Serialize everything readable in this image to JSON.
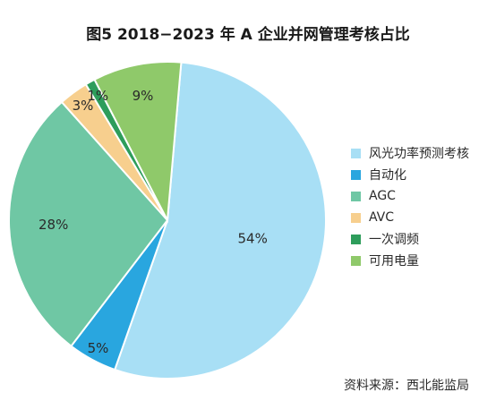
{
  "chart_data": {
    "type": "pie",
    "title": "图5 2018−2023 年 A 企业并网管理考核占比",
    "slices": [
      {
        "label": "风光功率预测考核",
        "value": 54,
        "text": "54%",
        "color": "#a8dff5"
      },
      {
        "label": "自动化",
        "value": 5,
        "text": "5%",
        "color": "#29a6df"
      },
      {
        "label": "AGC",
        "value": 28,
        "text": "28%",
        "color": "#6fc7a4"
      },
      {
        "label": "AVC",
        "value": 3,
        "text": "3%",
        "color": "#f7cf8e"
      },
      {
        "label": "一次调频",
        "value": 1,
        "text": "1%",
        "color": "#2e9d5b"
      },
      {
        "label": "可用电量",
        "value": 9,
        "text": "9%",
        "color": "#8fc96a"
      }
    ],
    "legend_position": "right",
    "source": "资料来源：西北能监局"
  }
}
